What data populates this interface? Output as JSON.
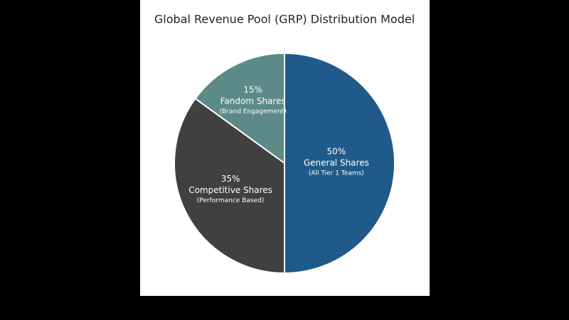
{
  "chart_data": {
    "type": "pie",
    "title": "Global Revenue Pool (GRP) Distribution Model",
    "categories": [
      "General Shares",
      "Competitive Shares",
      "Fandom Shares"
    ],
    "sublabels": [
      "(All Tier 1 Teams)",
      "(Performance Based)",
      "(Brand Engagement)"
    ],
    "values": [
      50,
      35,
      15
    ],
    "value_labels": [
      "50%",
      "35%",
      "15%"
    ],
    "colors": [
      "#1f5a8a",
      "#404040",
      "#5b8a88"
    ]
  }
}
